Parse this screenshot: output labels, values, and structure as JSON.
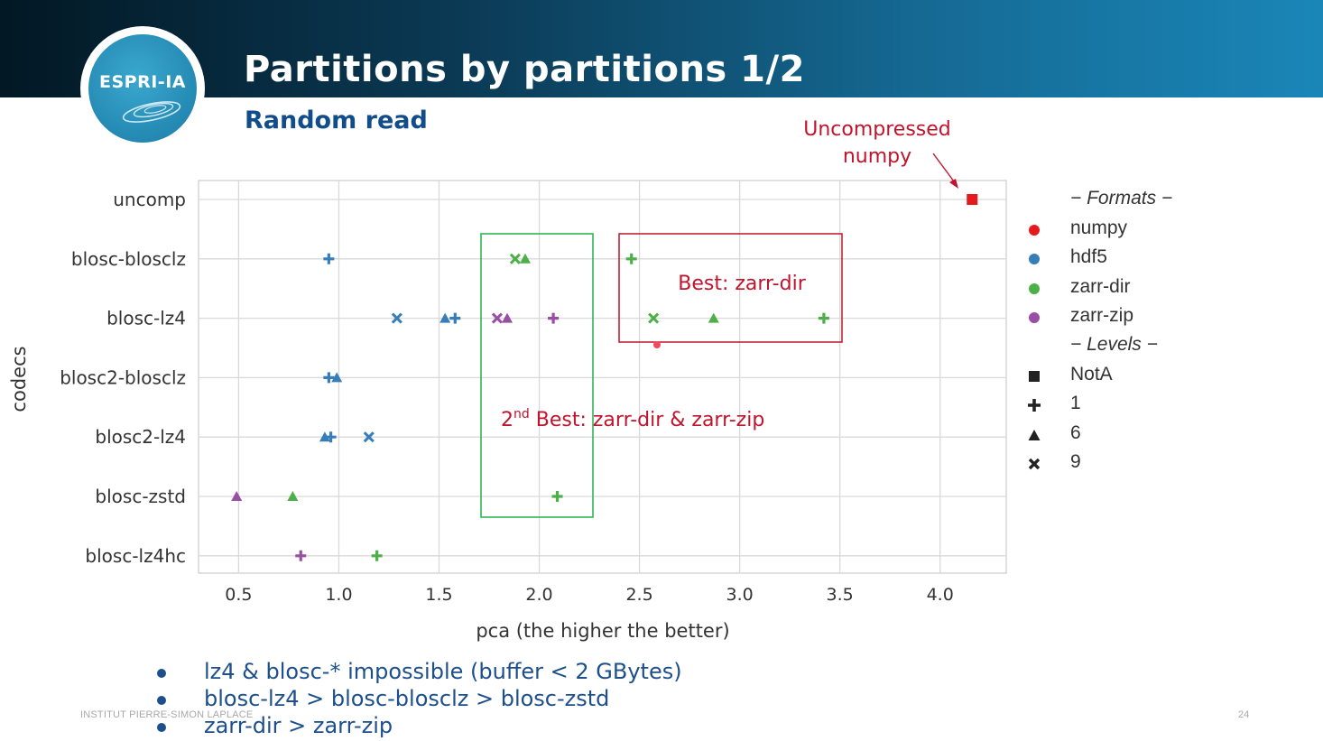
{
  "slide": {
    "title": "Partitions by partitions 1/2",
    "subtitle": "Random read",
    "logo_text": "ESPRI-IA",
    "footer_left": "INSTITUT PIERRE-SIMON LAPLACE",
    "page_number": "24",
    "bullets": [
      "lz4 & blosc-* impossible (buffer < 2 GBytes)",
      "blosc-lz4 > blosc-blosclz > blosc-zstd",
      "zarr-dir > zarr-zip"
    ]
  },
  "annotations": {
    "uncompressed": [
      "Uncompressed",
      "numpy"
    ],
    "best": "Best: zarr-dir",
    "second_best_sup": "nd",
    "second_best_pre": "2",
    "second_best_rest": " Best: zarr-dir & zarr-zip"
  },
  "legend": {
    "formats_header": "− Formats −",
    "levels_header": "− Levels −",
    "formats": [
      {
        "name": "numpy",
        "color": "#e41a1c"
      },
      {
        "name": "hdf5",
        "color": "#377eb8"
      },
      {
        "name": "zarr-dir",
        "color": "#4daf4a"
      },
      {
        "name": "zarr-zip",
        "color": "#984ea3"
      }
    ],
    "levels": [
      {
        "name": "NotA",
        "marker": "square"
      },
      {
        "name": "1",
        "marker": "plus"
      },
      {
        "name": "6",
        "marker": "triangle"
      },
      {
        "name": "9",
        "marker": "x"
      }
    ]
  },
  "chart_data": {
    "type": "scatter",
    "xlabel": "pca (the higher the better)",
    "ylabel": "codecs",
    "xlim": [
      0.3,
      4.33
    ],
    "xticks": [
      0.5,
      1.0,
      1.5,
      2.0,
      2.5,
      3.0,
      3.5,
      4.0
    ],
    "xtick_labels": [
      "0.5",
      "1.0",
      "1.5",
      "2.0",
      "2.5",
      "3.0",
      "3.5",
      "4.0"
    ],
    "categories": [
      "uncomp",
      "blosc-blosclz",
      "blosc-lz4",
      "blosc2-blosclz",
      "blosc2-lz4",
      "blosc-zstd",
      "blosc-lz4hc"
    ],
    "grid": true,
    "colors": {
      "numpy": "#e41a1c",
      "hdf5": "#377eb8",
      "zarr-dir": "#4daf4a",
      "zarr-zip": "#984ea3",
      "annotation": "#c0142d",
      "box_second": "#22b04b"
    },
    "points": [
      {
        "codec": "uncomp",
        "x": 4.16,
        "format": "numpy",
        "level": "NotA"
      },
      {
        "codec": "blosc-blosclz",
        "x": 0.95,
        "format": "hdf5",
        "level": "1"
      },
      {
        "codec": "blosc-blosclz",
        "x": 1.88,
        "format": "zarr-dir",
        "level": "9"
      },
      {
        "codec": "blosc-blosclz",
        "x": 1.93,
        "format": "zarr-dir",
        "level": "6"
      },
      {
        "codec": "blosc-blosclz",
        "x": 2.46,
        "format": "zarr-dir",
        "level": "1"
      },
      {
        "codec": "blosc-lz4",
        "x": 1.29,
        "format": "hdf5",
        "level": "9"
      },
      {
        "codec": "blosc-lz4",
        "x": 1.53,
        "format": "hdf5",
        "level": "6"
      },
      {
        "codec": "blosc-lz4",
        "x": 1.58,
        "format": "hdf5",
        "level": "1"
      },
      {
        "codec": "blosc-lz4",
        "x": 1.79,
        "format": "zarr-zip",
        "level": "9"
      },
      {
        "codec": "blosc-lz4",
        "x": 1.84,
        "format": "zarr-zip",
        "level": "6"
      },
      {
        "codec": "blosc-lz4",
        "x": 2.07,
        "format": "zarr-zip",
        "level": "1"
      },
      {
        "codec": "blosc-lz4",
        "x": 2.57,
        "format": "zarr-dir",
        "level": "9"
      },
      {
        "codec": "blosc-lz4",
        "x": 2.87,
        "format": "zarr-dir",
        "level": "6"
      },
      {
        "codec": "blosc-lz4",
        "x": 3.42,
        "format": "zarr-dir",
        "level": "1"
      },
      {
        "codec": "blosc2-blosclz",
        "x": 0.95,
        "format": "hdf5",
        "level": "1"
      },
      {
        "codec": "blosc2-blosclz",
        "x": 0.99,
        "format": "hdf5",
        "level": "6"
      },
      {
        "codec": "blosc2-lz4",
        "x": 0.93,
        "format": "hdf5",
        "level": "6"
      },
      {
        "codec": "blosc2-lz4",
        "x": 0.96,
        "format": "hdf5",
        "level": "1"
      },
      {
        "codec": "blosc2-lz4",
        "x": 1.15,
        "format": "hdf5",
        "level": "9"
      },
      {
        "codec": "blosc-zstd",
        "x": 0.49,
        "format": "zarr-zip",
        "level": "6"
      },
      {
        "codec": "blosc-zstd",
        "x": 0.77,
        "format": "zarr-dir",
        "level": "6"
      },
      {
        "codec": "blosc-zstd",
        "x": 2.09,
        "format": "zarr-dir",
        "level": "1"
      },
      {
        "codec": "blosc-lz4hc",
        "x": 0.81,
        "format": "zarr-zip",
        "level": "1"
      },
      {
        "codec": "blosc-lz4hc",
        "x": 1.19,
        "format": "zarr-dir",
        "level": "1"
      }
    ]
  }
}
